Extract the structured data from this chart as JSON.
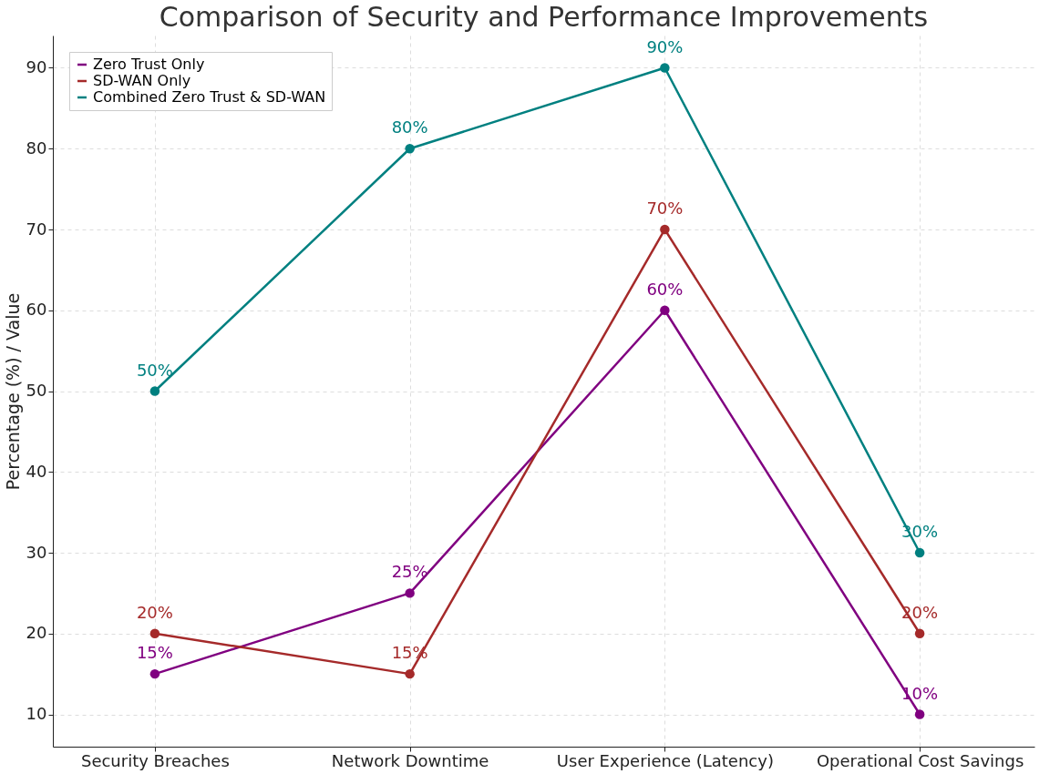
{
  "chart_data": {
    "type": "line",
    "title": "Comparison of Security and Performance Improvements",
    "ylabel": "Percentage (%) / Value",
    "categories": [
      "Security Breaches",
      "Network Downtime",
      "User Experience (Latency)",
      "Operational Cost Savings"
    ],
    "series": [
      {
        "name": "Zero Trust Only",
        "color": "#800080",
        "values": [
          15,
          25,
          60,
          10
        ],
        "value_labels": [
          "15%",
          "25%",
          "60%",
          "10%"
        ]
      },
      {
        "name": "SD-WAN Only",
        "color": "#a52a2a",
        "values": [
          20,
          15,
          70,
          20
        ],
        "value_labels": [
          "20%",
          "15%",
          "70%",
          "20%"
        ]
      },
      {
        "name": "Combined Zero Trust & SD-WAN",
        "color": "#008080",
        "values": [
          50,
          80,
          90,
          30
        ],
        "value_labels": [
          "50%",
          "80%",
          "90%",
          "30%"
        ]
      }
    ],
    "ylim": [
      6,
      94
    ],
    "yticks": [
      10,
      20,
      30,
      40,
      50,
      60,
      70,
      80,
      90
    ],
    "grid": true,
    "legend": "top left",
    "marker": "circle",
    "line_style": "solid"
  }
}
